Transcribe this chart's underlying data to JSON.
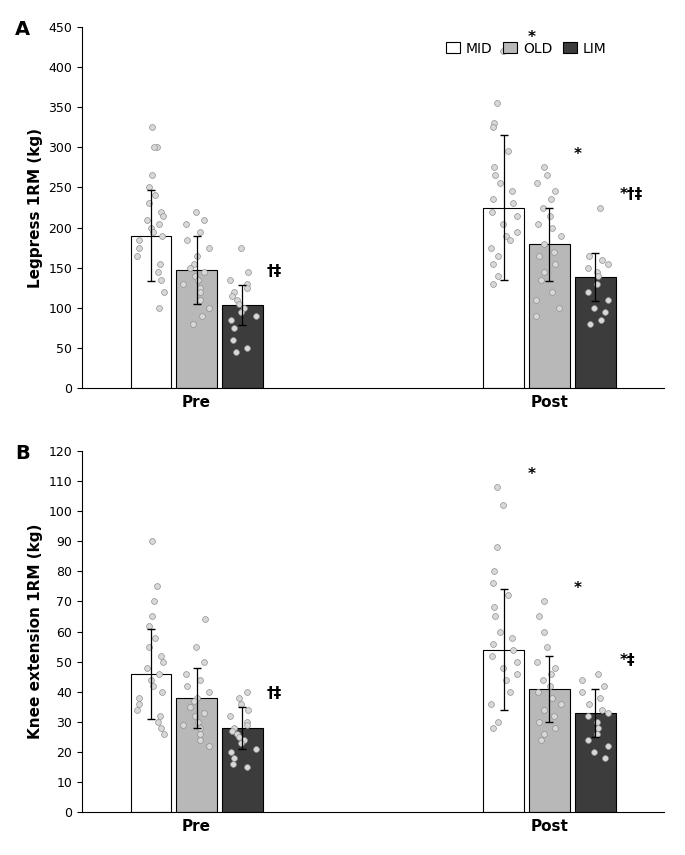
{
  "panel_A": {
    "title": "A",
    "ylabel": "Legpress 1RM (kg)",
    "ylim": [
      0,
      450
    ],
    "yticks": [
      0,
      50,
      100,
      150,
      200,
      250,
      300,
      350,
      400,
      450
    ],
    "bars": {
      "Pre": {
        "MID": {
          "mean": 190,
          "sd": 57
        },
        "OLD": {
          "mean": 147,
          "sd": 42
        },
        "LIM": {
          "mean": 104,
          "sd": 25
        }
      },
      "Post": {
        "MID": {
          "mean": 225,
          "sd": 90
        },
        "OLD": {
          "mean": 179,
          "sd": 45
        },
        "LIM": {
          "mean": 138,
          "sd": 30
        }
      }
    },
    "dots": {
      "Pre": {
        "MID": [
          325,
          300,
          300,
          265,
          250,
          240,
          230,
          220,
          215,
          210,
          205,
          200,
          195,
          190,
          185,
          175,
          165,
          155,
          145,
          135,
          120,
          100
        ],
        "OLD": [
          220,
          210,
          205,
          195,
          185,
          175,
          165,
          155,
          150,
          145,
          140,
          135,
          130,
          125,
          120,
          110,
          100,
          90,
          80
        ],
        "LIM": [
          175,
          145,
          135,
          130,
          125,
          120,
          115,
          110,
          105,
          100,
          95,
          90,
          85,
          75,
          60,
          50,
          45
        ]
      },
      "Post": {
        "MID": [
          420,
          355,
          330,
          325,
          295,
          275,
          265,
          255,
          245,
          235,
          230,
          220,
          215,
          205,
          195,
          190,
          185,
          175,
          165,
          155,
          140,
          130
        ],
        "OLD": [
          275,
          265,
          255,
          245,
          235,
          225,
          215,
          205,
          200,
          190,
          180,
          170,
          165,
          155,
          145,
          135,
          120,
          110,
          100,
          90
        ],
        "LIM": [
          225,
          165,
          160,
          155,
          150,
          145,
          140,
          130,
          120,
          110,
          100,
          95,
          85,
          80
        ]
      }
    },
    "annotations": {
      "Pre_LIM": "†‡",
      "Post_MID": "*",
      "Post_OLD": "*",
      "Post_LIM": "*†‡"
    }
  },
  "panel_B": {
    "title": "B",
    "ylabel": "Knee extension 1RM (kg)",
    "ylim": [
      0,
      120
    ],
    "yticks": [
      0,
      10,
      20,
      30,
      40,
      50,
      60,
      70,
      80,
      90,
      100,
      110,
      120
    ],
    "bars": {
      "Pre": {
        "MID": {
          "mean": 46,
          "sd": 15
        },
        "OLD": {
          "mean": 38,
          "sd": 10
        },
        "LIM": {
          "mean": 28,
          "sd": 7
        }
      },
      "Post": {
        "MID": {
          "mean": 54,
          "sd": 20
        },
        "OLD": {
          "mean": 41,
          "sd": 11
        },
        "LIM": {
          "mean": 33,
          "sd": 8
        }
      }
    },
    "dots": {
      "Pre": {
        "MID": [
          90,
          75,
          70,
          65,
          62,
          58,
          55,
          52,
          50,
          48,
          46,
          44,
          42,
          40,
          38,
          36,
          34,
          32,
          30,
          28,
          26
        ],
        "OLD": [
          64,
          55,
          50,
          46,
          44,
          42,
          40,
          38,
          37,
          35,
          33,
          32,
          30,
          29,
          28,
          26,
          24,
          22
        ],
        "LIM": [
          40,
          38,
          36,
          34,
          32,
          30,
          29,
          28,
          27,
          26,
          25,
          24,
          23,
          21,
          20,
          18,
          16,
          15
        ]
      },
      "Post": {
        "MID": [
          108,
          102,
          88,
          80,
          76,
          72,
          68,
          65,
          60,
          58,
          56,
          54,
          52,
          50,
          48,
          46,
          44,
          40,
          36,
          30,
          28
        ],
        "OLD": [
          70,
          65,
          60,
          55,
          50,
          48,
          46,
          44,
          42,
          40,
          38,
          36,
          34,
          32,
          30,
          28,
          26,
          24
        ],
        "LIM": [
          46,
          44,
          42,
          40,
          38,
          36,
          34,
          33,
          32,
          30,
          28,
          26,
          24,
          22,
          20,
          18
        ]
      }
    },
    "annotations": {
      "Pre_LIM": "†‡",
      "Post_MID": "*",
      "Post_OLD": "*",
      "Post_LIM": "*‡"
    }
  },
  "groups": [
    "MID",
    "OLD",
    "LIM"
  ],
  "timepoints": [
    "Pre",
    "Post"
  ],
  "bar_colors": {
    "MID": "#ffffff",
    "OLD": "#b8b8b8",
    "LIM": "#3c3c3c"
  },
  "bar_edgecolor": "#000000",
  "dot_facecolor": "#d8d8d8",
  "dot_edgecolor": "#909090",
  "legend_labels": [
    "MID",
    "OLD",
    "LIM"
  ]
}
